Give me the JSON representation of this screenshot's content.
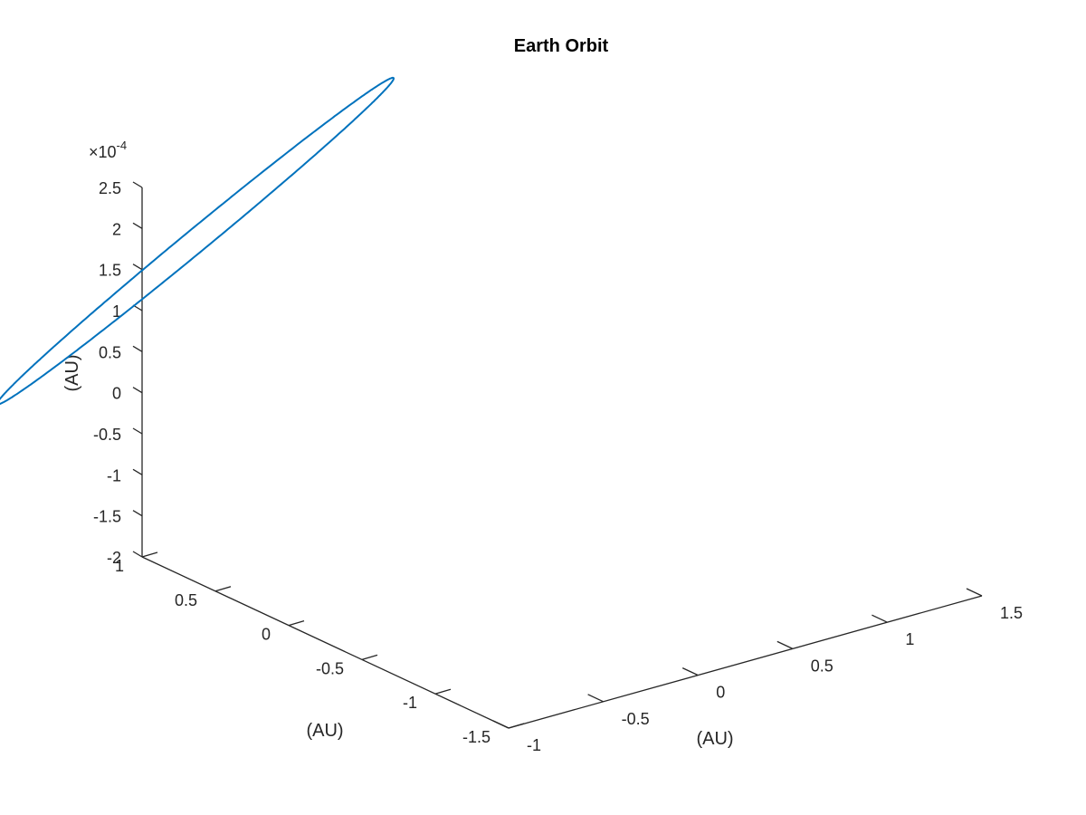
{
  "chart_data": {
    "type": "line",
    "title": "Earth Orbit",
    "xlabel": "(AU)",
    "ylabel": "(AU)",
    "zlabel": "(AU)",
    "xlim": [
      -1,
      1.5
    ],
    "ylim": [
      -1.5,
      1
    ],
    "zlim": [
      -2,
      2.5
    ],
    "x_ticks": [
      "-1",
      "-0.5",
      "0",
      "0.5",
      "1",
      "1.5"
    ],
    "y_ticks": [
      "-1.5",
      "-1",
      "-0.5",
      "0",
      "0.5",
      "1"
    ],
    "z_ticks": [
      "-2",
      "-1.5",
      "-1",
      "-0.5",
      "0",
      "0.5",
      "1",
      "1.5",
      "2",
      "2.5"
    ],
    "z_exponent_base": "×10",
    "z_exponent_power": "-4",
    "grid": false,
    "series": [
      {
        "color": "#0072BD",
        "x": [
          -0.17,
          1.0,
          0.17,
          -1.0,
          -0.17
        ],
        "y": [
          -1.0,
          0.16,
          1.0,
          -0.16,
          -1.0
        ],
        "z": [
          -0.0002,
          2e-05,
          0.0002,
          -2e-05,
          -0.0002
        ]
      }
    ]
  }
}
